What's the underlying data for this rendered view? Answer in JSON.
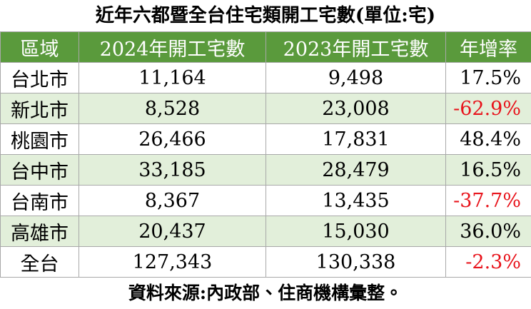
{
  "title": "近年六都暨全台住宅類開工宅數(單位:宅)",
  "table": {
    "header": [
      "區域",
      "2024年開工宅數",
      "2023年開工宅數",
      "年增率"
    ],
    "rows": [
      [
        "台北市",
        "11,164",
        "9,498",
        "17.5%"
      ],
      [
        "新北市",
        "8,528",
        "23,008",
        "-62.9%"
      ],
      [
        "桃園市",
        "26,466",
        "17,831",
        "48.4%"
      ],
      [
        "台中市",
        "33,185",
        "28,479",
        "16.5%"
      ],
      [
        "台南市",
        "8,367",
        "13,435",
        "-37.7%"
      ],
      [
        "高雄市",
        "20,437",
        "15,030",
        "36.0%"
      ],
      [
        "全台",
        "127,343",
        "130,338",
        "-2.3%"
      ]
    ]
  },
  "footer": "資料來源:內政部、住商機構彙整。"
}
